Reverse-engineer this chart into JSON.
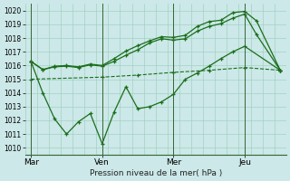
{
  "background_color": "#cce8e8",
  "plot_bg": "#cce8e8",
  "grid_color": "#99ccbb",
  "line_color": "#1a6e1a",
  "ylabel": "Pression niveau de la mer( hPa )",
  "ylim": [
    1009.5,
    1020.5
  ],
  "yticks": [
    1010,
    1011,
    1012,
    1013,
    1014,
    1015,
    1016,
    1017,
    1018,
    1019,
    1020
  ],
  "xtick_labels": [
    "Mar",
    "Ven",
    "Mer",
    "Jeu"
  ],
  "xtick_positions": [
    0,
    24,
    48,
    72
  ],
  "xlim": [
    -2,
    86
  ],
  "vline_x": [
    0,
    24,
    48,
    72
  ],
  "series1_x": [
    0,
    4,
    8,
    12,
    16,
    20,
    24,
    28,
    32,
    36,
    40,
    44,
    48,
    52,
    56,
    60,
    64,
    68,
    72,
    76,
    84
  ],
  "series1_y": [
    1016.3,
    1015.7,
    1015.95,
    1016.0,
    1015.9,
    1016.1,
    1016.0,
    1016.5,
    1017.05,
    1017.45,
    1017.8,
    1018.1,
    1018.05,
    1018.2,
    1018.85,
    1019.2,
    1019.3,
    1019.85,
    1019.95,
    1019.25,
    1015.65
  ],
  "series2_x": [
    0,
    4,
    8,
    12,
    16,
    20,
    24,
    28,
    32,
    36,
    40,
    44,
    48,
    52,
    56,
    60,
    64,
    68,
    72,
    76,
    84
  ],
  "series2_y": [
    1016.3,
    1015.7,
    1015.9,
    1015.95,
    1015.85,
    1016.05,
    1015.95,
    1016.3,
    1016.75,
    1017.15,
    1017.65,
    1017.95,
    1017.85,
    1017.95,
    1018.5,
    1018.85,
    1019.05,
    1019.45,
    1019.75,
    1018.25,
    1015.65
  ],
  "series3_x": [
    0,
    24,
    36,
    48,
    60,
    72,
    84
  ],
  "series3_y": [
    1015.0,
    1015.15,
    1015.3,
    1015.5,
    1015.65,
    1015.85,
    1015.65
  ],
  "series4_x": [
    0,
    4,
    8,
    12,
    16,
    20,
    24,
    28,
    32,
    36,
    40,
    44,
    48,
    52,
    56,
    60,
    64,
    68,
    72,
    84
  ],
  "series4_y": [
    1016.3,
    1014.0,
    1012.1,
    1011.0,
    1011.9,
    1012.5,
    1010.3,
    1012.6,
    1014.45,
    1012.85,
    1013.0,
    1013.35,
    1013.9,
    1015.0,
    1015.45,
    1015.95,
    1016.5,
    1017.0,
    1017.4,
    1015.65
  ]
}
